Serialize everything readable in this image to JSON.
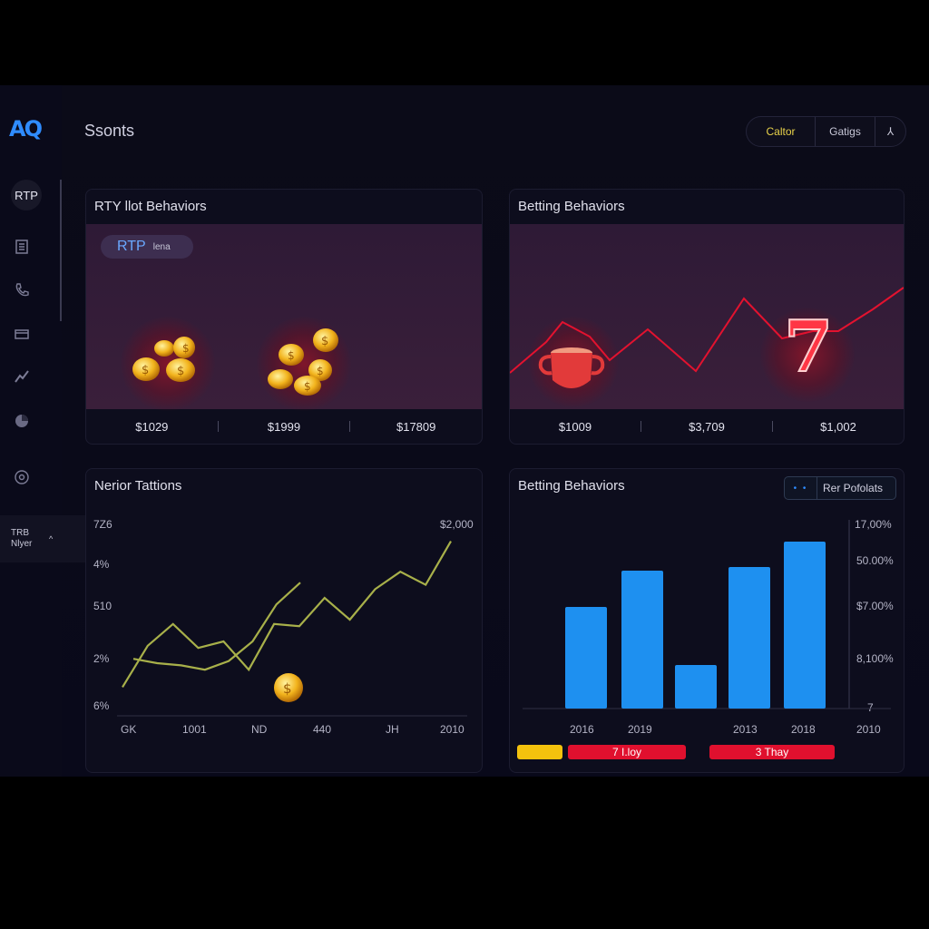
{
  "sidebar": {
    "logo": "AQ",
    "rtp_label": "RTP",
    "icons": [
      "report-icon",
      "phone-icon",
      "wallet-icon",
      "chart-icon",
      "pie-icon",
      "settings-icon"
    ],
    "tooltip_line1": "TRB",
    "tooltip_line2": "Nlyer",
    "tooltip_chevron": "^"
  },
  "header": {
    "title": "Ssonts",
    "buttons": [
      "Caltor",
      "Gatigs",
      "⅄"
    ]
  },
  "cards": {
    "rtp_slot": {
      "title": "RTY llot Behaviors",
      "pill_big": "RTP",
      "pill_small": "lena",
      "values": [
        "$1029",
        "$1999",
        "$17809"
      ]
    },
    "betting_1": {
      "title": "Betting Behaviors",
      "values": [
        "$1009",
        "$3,709",
        "$1,002"
      ],
      "seven_label": "7"
    },
    "line_chart": {
      "title": "Nerior Tattions",
      "coin_label": "$"
    },
    "bar_chart": {
      "title": "Betting Behaviors",
      "legend_dots": "• •",
      "legend_label": "Rer Pofolats",
      "pills": [
        "",
        "7 I.loy",
        "3 Thay"
      ]
    }
  },
  "colors": {
    "accent_blue": "#2f8cff",
    "bar_blue": "#1e90f0",
    "line_green": "#a8b04a",
    "red": "#e0102e",
    "yellow": "#f4c20d"
  },
  "chart_data": [
    {
      "type": "line",
      "title": "Nerior Tattions",
      "ytick_labels": [
        "7Z6",
        "4%",
        "510",
        "2%",
        "6%"
      ],
      "top_right_label": "$2,000",
      "xtick_labels": [
        "GK",
        "1001",
        "ND",
        "440",
        "JH",
        "2010"
      ],
      "series": [
        {
          "values": [
            0.09,
            0.28,
            0.38,
            0.27,
            0.3,
            0.17,
            0.38,
            0.37,
            0.5,
            0.4,
            0.54,
            0.62,
            0.56,
            0.76
          ]
        },
        {
          "values": [
            0.22,
            0.2,
            0.19,
            0.17,
            0.21,
            0.3,
            0.47,
            0.57
          ]
        }
      ]
    },
    {
      "type": "bar",
      "title": "Betting Behaviors",
      "xtick_labels": [
        "2016",
        "2019",
        "",
        "2013",
        "2018",
        "2010"
      ],
      "ytick_labels": [
        "17,00%",
        "50.00%",
        "$7.00%",
        "8,100%",
        "7"
      ],
      "values": [
        0.56,
        0.76,
        0.24,
        0.78,
        0.92
      ]
    }
  ]
}
